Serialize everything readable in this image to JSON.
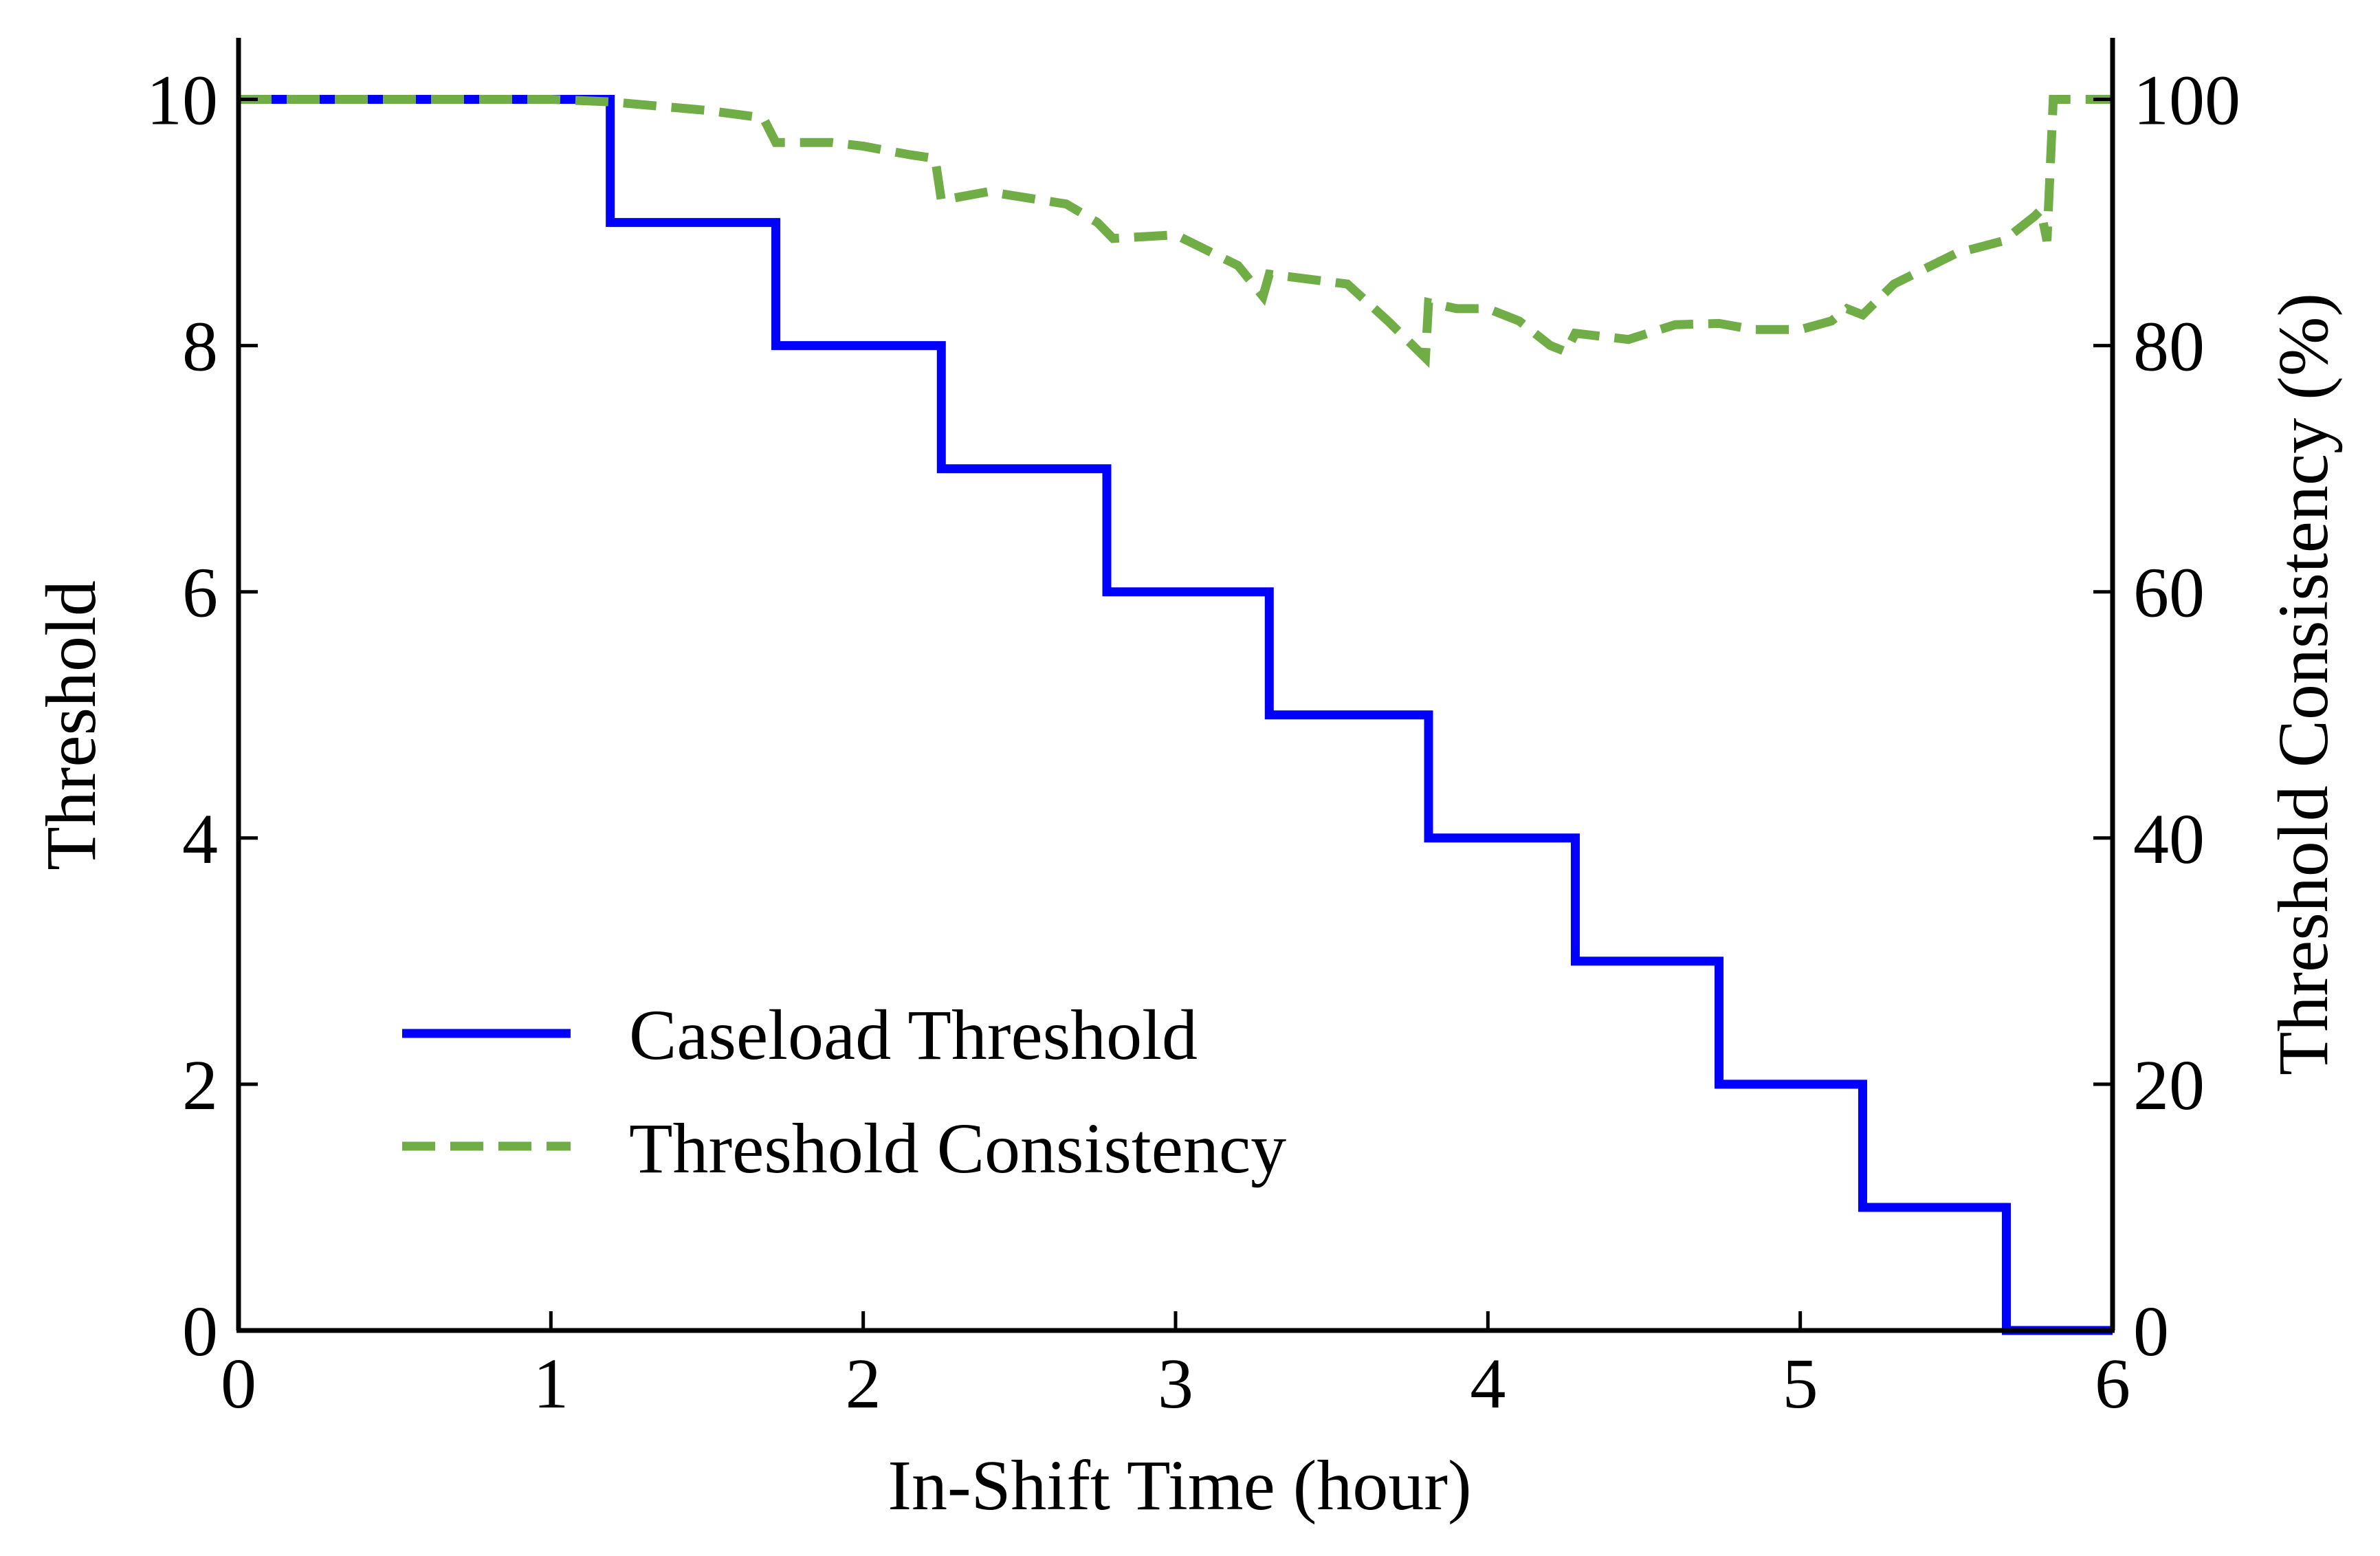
{
  "chart_data": {
    "type": "line",
    "xlabel": "In-Shift Time (hour)",
    "ylabel": "Threshold",
    "y2label": "Threshold Consistency (%)",
    "xlim": [
      0,
      6
    ],
    "ylim": [
      0,
      10.5
    ],
    "y2lim": [
      0,
      105
    ],
    "x_ticks": [
      0,
      1,
      2,
      3,
      4,
      5,
      6
    ],
    "y_ticks": [
      0,
      2,
      4,
      6,
      8,
      10
    ],
    "y2_ticks": [
      0,
      20,
      40,
      60,
      80,
      100
    ],
    "grid": false,
    "legend_position": "lower-left",
    "series": [
      {
        "name": "Caseload Threshold",
        "axis": "left",
        "color": "#0000ff",
        "style": "solid",
        "step_x": [
          0,
          1.19,
          1.72,
          2.25,
          2.78,
          3.3,
          3.81,
          4.28,
          4.74,
          5.2,
          5.66,
          6.0
        ],
        "step_y": [
          10,
          9,
          8,
          7,
          6,
          5,
          4,
          3,
          2,
          1,
          0
        ]
      },
      {
        "name": "Threshold Consistency",
        "axis": "right",
        "color": "#70ad47",
        "style": "dashed",
        "x": [
          0,
          1.0,
          1.19,
          1.5,
          1.68,
          1.72,
          1.9,
          2.0,
          2.15,
          2.23,
          2.25,
          2.4,
          2.65,
          2.75,
          2.8,
          3.0,
          3.2,
          3.28,
          3.3,
          3.55,
          3.68,
          3.78,
          3.8,
          3.81,
          3.9,
          4.0,
          4.1,
          4.2,
          4.25,
          4.28,
          4.45,
          4.6,
          4.74,
          4.85,
          5.0,
          5.1,
          5.15,
          5.2,
          5.3,
          5.5,
          5.65,
          5.75,
          5.77,
          5.79,
          5.81,
          6.0
        ],
        "y": [
          100,
          100,
          99.8,
          99.1,
          98.5,
          96.5,
          96.5,
          96.2,
          95.5,
          95.2,
          91.8,
          92.5,
          91.5,
          90.0,
          88.7,
          89.0,
          86.5,
          84.0,
          85.8,
          85.0,
          82.0,
          79.5,
          79.0,
          83.5,
          83.0,
          83.0,
          82.0,
          80.0,
          79.5,
          81.0,
          80.5,
          81.7,
          81.8,
          81.3,
          81.3,
          82.0,
          83.0,
          82.5,
          85.0,
          87.5,
          88.5,
          90.5,
          91.0,
          88.5,
          100,
          100
        ]
      }
    ]
  }
}
